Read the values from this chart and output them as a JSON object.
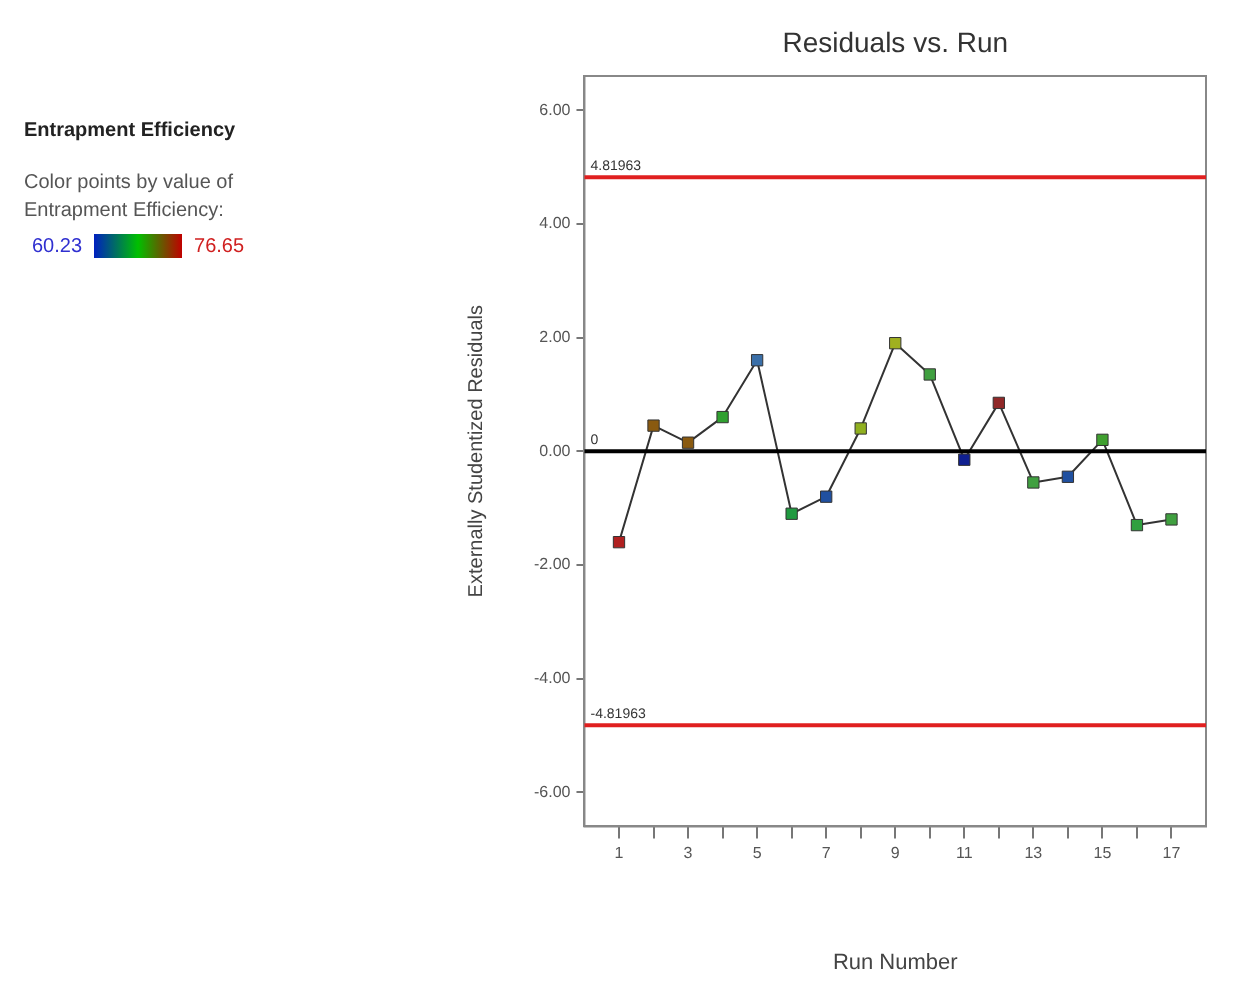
{
  "chart_data": {
    "type": "line",
    "title": "Residuals vs. Run",
    "subtitle": "Entrapment Efficiency",
    "xlabel": "Run Number",
    "ylabel": "Externally Studentized Residuals",
    "annotations": [
      "Color points by value of Entrapment Efficiency:",
      "60.23",
      "76.65"
    ],
    "x": [
      1,
      2,
      3,
      4,
      5,
      6,
      7,
      8,
      9,
      10,
      11,
      12,
      13,
      14,
      15,
      16,
      17
    ],
    "series": [
      {
        "color": "#333333",
        "values": [
          -1.6,
          0.45,
          0.15,
          0.6,
          1.6,
          -1.1,
          -0.8,
          0.4,
          1.9,
          1.35,
          -0.15,
          0.85,
          -0.55,
          -0.45,
          0.2,
          -1.3,
          -1.2
        ],
        "colors": [
          "#b02020",
          "#8a5a10",
          "#8a5a10",
          "#30a030",
          "#3a6fa8",
          "#209a40",
          "#2050a0",
          "#90b020",
          "#a0b020",
          "#40a040",
          "#102090",
          "#902828",
          "#40a040",
          "#2050a0",
          "#40a030",
          "#30a040",
          "#40a040"
        ]
      }
    ],
    "marker": "square",
    "grid": false,
    "legend": false,
    "xlim": [
      0,
      18
    ],
    "xticks": [
      1,
      {
        "value": 2,
        "label": null
      },
      3,
      {
        "value": 4,
        "label": null
      },
      5,
      {
        "value": 6,
        "label": null
      },
      7,
      {
        "value": 8,
        "label": null
      },
      9,
      {
        "value": 10,
        "label": null
      },
      11,
      {
        "value": 12,
        "label": null
      },
      13,
      {
        "value": 14,
        "label": null
      },
      15,
      {
        "value": 16,
        "label": null
      },
      17
    ],
    "ylim": [
      -6.6,
      6.6
    ],
    "yticks": [
      {
        "value": 6,
        "label": "6.00"
      },
      {
        "value": 4,
        "label": "4.00"
      },
      {
        "value": 2,
        "label": "2.00"
      },
      {
        "value": 0,
        "label": "0.00"
      },
      {
        "value": -2,
        "label": "-2.00"
      },
      {
        "value": -4,
        "label": "-4.00"
      },
      {
        "value": -6,
        "label": "-6.00"
      }
    ],
    "ref_lines": [
      {
        "axis": "y",
        "value": 4.81963,
        "label": "4.81963",
        "color": "#e02020"
      },
      {
        "axis": "y",
        "value": 0,
        "label": "0",
        "color": "#000000"
      },
      {
        "axis": "y",
        "value": -4.81963,
        "label": "-4.81963",
        "color": "#e02020"
      }
    ]
  }
}
